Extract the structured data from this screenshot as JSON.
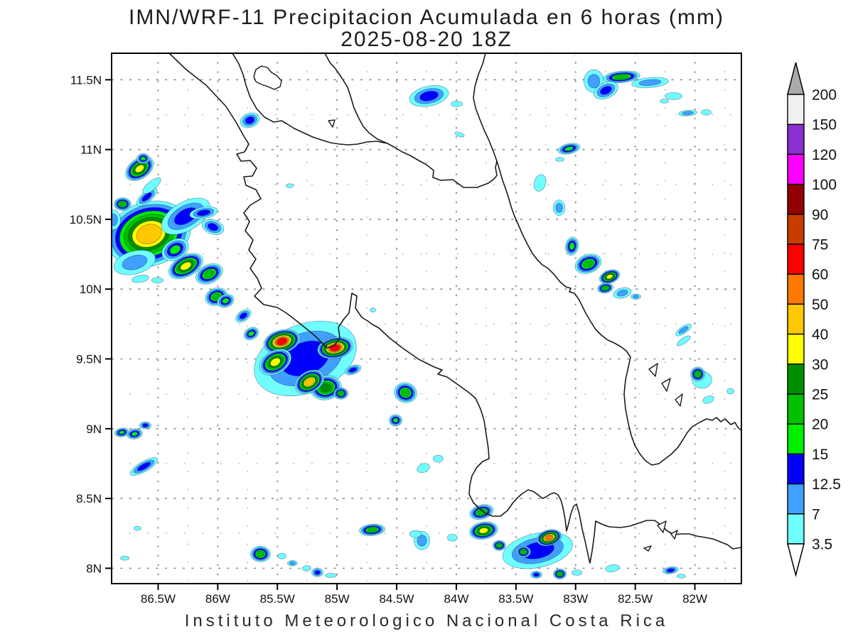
{
  "title": {
    "line1": "IMN/WRF-11 Precipitacion Acumulada en 6 horas (mm)",
    "line2": "2025-08-20 18Z"
  },
  "footer": "Instituto Meteorologico Nacional Costa Rica",
  "chart_data": {
    "type": "heatmap",
    "title": "IMN/WRF-11 Precipitacion Acumulada en 6 horas (mm)",
    "subtitle": "2025-08-20 18Z",
    "units": "mm",
    "legend_position": "right",
    "grid": "dotted",
    "proj": {
      "lon_min": -86.89,
      "lon_max": -81.61,
      "lat_min": 7.89,
      "lat_max": 11.69
    },
    "x_ticks": [
      {
        "lon": -86.5,
        "label": "86.5W"
      },
      {
        "lon": -86.0,
        "label": "86W"
      },
      {
        "lon": -85.5,
        "label": "85.5W"
      },
      {
        "lon": -85.0,
        "label": "85W"
      },
      {
        "lon": -84.5,
        "label": "84.5W"
      },
      {
        "lon": -84.0,
        "label": "84W"
      },
      {
        "lon": -83.5,
        "label": "83.5W"
      },
      {
        "lon": -83.0,
        "label": "83W"
      },
      {
        "lon": -82.5,
        "label": "82.5W"
      },
      {
        "lon": -82.0,
        "label": "82W"
      }
    ],
    "y_ticks": [
      {
        "lat": 11.5,
        "label": "11.5N"
      },
      {
        "lat": 11.0,
        "label": "11N"
      },
      {
        "lat": 10.5,
        "label": "10.5N"
      },
      {
        "lat": 10.0,
        "label": "10N"
      },
      {
        "lat": 9.5,
        "label": "9.5N"
      },
      {
        "lat": 9.0,
        "label": "9N"
      },
      {
        "lat": 8.5,
        "label": "8.5N"
      },
      {
        "lat": 8.0,
        "label": "8N"
      }
    ],
    "levels": [
      3.5,
      7,
      12.5,
      15,
      20,
      25,
      30,
      40,
      50,
      60,
      75,
      90,
      100,
      120,
      150,
      200
    ],
    "level_colors": [
      "#70FFFF",
      "#41A0FF",
      "#0000FF",
      "#00EE00",
      "#00C000",
      "#008F00",
      "#FFFF00",
      "#FFC800",
      "#FF7800",
      "#FF0000",
      "#C83C00",
      "#940000",
      "#FF00FF",
      "#8A30D0",
      "#F0F0F0",
      "#AAAAAA"
    ],
    "colorbar_arrow_top_color": "#AAAAAA",
    "colorbar_arrow_bottom_color": "#FFFFFF",
    "cell_format": [
      "lon",
      "lat",
      "rx_deg",
      "ry_deg",
      "rotation_deg",
      "max_level_count"
    ],
    "cells": [
      [
        -86.655,
        10.863,
        0.131,
        0.071,
        -35,
        7
      ],
      [
        -86.625,
        10.935,
        0.054,
        0.036,
        0,
        4
      ],
      [
        -86.554,
        10.741,
        0.095,
        0.031,
        -40,
        1
      ],
      [
        -86.595,
        10.66,
        0.107,
        0.036,
        -40,
        3
      ],
      [
        -86.798,
        10.609,
        0.072,
        0.046,
        0,
        5
      ],
      [
        -86.875,
        10.497,
        0.06,
        0.071,
        0,
        2
      ],
      [
        -86.577,
        10.395,
        0.358,
        0.229,
        -18,
        8
      ],
      [
        -86.268,
        10.522,
        0.226,
        0.102,
        -30,
        3
      ],
      [
        -86.119,
        10.547,
        0.119,
        0.041,
        -10,
        3
      ],
      [
        -86.041,
        10.445,
        0.095,
        0.051,
        20,
        3
      ],
      [
        -86.697,
        10.191,
        0.179,
        0.082,
        -15,
        2
      ],
      [
        -86.357,
        10.283,
        0.119,
        0.071,
        -30,
        4
      ],
      [
        -86.268,
        10.165,
        0.155,
        0.076,
        -28,
        7
      ],
      [
        -86.071,
        10.109,
        0.119,
        0.066,
        -25,
        5
      ],
      [
        -86.012,
        9.946,
        0.095,
        0.061,
        -20,
        5
      ],
      [
        -85.934,
        9.916,
        0.072,
        0.046,
        -20,
        4
      ],
      [
        -86.649,
        10.074,
        0.072,
        0.025,
        -10,
        1
      ],
      [
        -86.506,
        10.063,
        0.048,
        0.02,
        0,
        1
      ],
      [
        -86.804,
        8.973,
        0.06,
        0.031,
        -10,
        4
      ],
      [
        -86.697,
        8.963,
        0.066,
        0.036,
        -10,
        4
      ],
      [
        -86.607,
        9.024,
        0.048,
        0.025,
        0,
        3
      ],
      [
        -86.619,
        8.729,
        0.131,
        0.036,
        -30,
        3
      ],
      [
        -86.78,
        8.072,
        0.036,
        0.015,
        0,
        1
      ],
      [
        -86.673,
        8.286,
        0.03,
        0.015,
        0,
        1
      ],
      [
        -85.785,
        9.809,
        0.072,
        0.036,
        -35,
        3
      ],
      [
        -85.719,
        9.681,
        0.066,
        0.041,
        -30,
        4
      ],
      [
        -85.266,
        9.503,
        0.447,
        0.245,
        -22,
        3
      ],
      [
        -85.463,
        9.625,
        0.155,
        0.082,
        -15,
        10
      ],
      [
        -85.016,
        9.579,
        0.149,
        0.076,
        -10,
        10
      ],
      [
        -85.517,
        9.477,
        0.143,
        0.082,
        -30,
        7
      ],
      [
        -85.231,
        9.335,
        0.131,
        0.076,
        -30,
        8
      ],
      [
        -85.094,
        9.294,
        0.131,
        0.087,
        -10,
        6
      ],
      [
        -84.968,
        9.253,
        0.06,
        0.041,
        0,
        5
      ],
      [
        -84.867,
        9.421,
        0.072,
        0.031,
        -20,
        3
      ],
      [
        -84.426,
        9.258,
        0.095,
        0.071,
        15,
        5
      ],
      [
        -84.509,
        9.06,
        0.054,
        0.041,
        0,
        4
      ],
      [
        -84.277,
        8.718,
        0.054,
        0.031,
        -20,
        1
      ],
      [
        -84.229,
        11.383,
        0.167,
        0.071,
        -12,
        3
      ],
      [
        -83.997,
        11.327,
        0.048,
        0.02,
        0,
        1
      ],
      [
        -83.973,
        11.108,
        0.042,
        0.015,
        20,
        1
      ],
      [
        -82.614,
        11.52,
        0.155,
        0.041,
        -5,
        5
      ],
      [
        -82.745,
        11.424,
        0.107,
        0.056,
        -25,
        3
      ],
      [
        -82.847,
        11.49,
        0.083,
        0.082,
        0,
        2
      ],
      [
        -82.376,
        11.48,
        0.155,
        0.036,
        -5,
        2
      ],
      [
        -82.179,
        11.383,
        0.072,
        0.025,
        0,
        1
      ],
      [
        -82.06,
        11.261,
        0.077,
        0.02,
        -5,
        2
      ],
      [
        -81.905,
        11.266,
        0.042,
        0.02,
        0,
        1
      ],
      [
        -82.256,
        11.347,
        0.036,
        0.015,
        0,
        1
      ],
      [
        -83.055,
        11.006,
        0.095,
        0.036,
        -12,
        4
      ],
      [
        -83.132,
        10.929,
        0.036,
        0.015,
        0,
        1
      ],
      [
        -83.299,
        10.761,
        0.048,
        0.061,
        15,
        1
      ],
      [
        -83.138,
        10.583,
        0.048,
        0.056,
        0,
        2
      ],
      [
        -83.031,
        10.308,
        0.054,
        0.066,
        10,
        4
      ],
      [
        -82.894,
        10.181,
        0.113,
        0.066,
        -20,
        5
      ],
      [
        -82.715,
        10.089,
        0.089,
        0.046,
        -20,
        7
      ],
      [
        -82.751,
        10.007,
        0.066,
        0.036,
        -10,
        5
      ],
      [
        -82.608,
        9.972,
        0.077,
        0.036,
        -15,
        2
      ],
      [
        -82.495,
        9.946,
        0.042,
        0.02,
        0,
        2
      ],
      [
        -82.095,
        9.707,
        0.077,
        0.025,
        -35,
        2
      ],
      [
        -82.095,
        9.63,
        0.066,
        0.02,
        -35,
        1
      ],
      [
        -81.976,
        9.391,
        0.06,
        0.051,
        0,
        5
      ],
      [
        -81.94,
        9.35,
        0.083,
        0.061,
        0,
        1
      ],
      [
        -81.887,
        9.208,
        0.048,
        0.025,
        -20,
        1
      ],
      [
        -81.702,
        9.269,
        0.03,
        0.02,
        0,
        1
      ],
      [
        -85.642,
        8.102,
        0.083,
        0.056,
        0,
        5
      ],
      [
        -85.463,
        8.087,
        0.036,
        0.02,
        0,
        1
      ],
      [
        -85.374,
        8.036,
        0.042,
        0.02,
        0,
        2
      ],
      [
        -85.254,
        8.0,
        0.036,
        0.02,
        0,
        1
      ],
      [
        -85.165,
        7.97,
        0.048,
        0.031,
        0,
        3
      ],
      [
        -85.052,
        7.949,
        0.048,
        0.015,
        0,
        1
      ],
      [
        -84.706,
        8.275,
        0.107,
        0.041,
        -5,
        5
      ],
      [
        -84.289,
        8.199,
        0.066,
        0.066,
        0,
        2
      ],
      [
        -84.033,
        8.219,
        0.042,
        0.025,
        0,
        1
      ],
      [
        -83.789,
        8.403,
        0.101,
        0.051,
        -15,
        5
      ],
      [
        -83.771,
        8.27,
        0.119,
        0.061,
        -10,
        7
      ],
      [
        -83.318,
        8.128,
        0.298,
        0.122,
        -12,
        3
      ],
      [
        -83.64,
        8.163,
        0.054,
        0.036,
        0,
        5
      ],
      [
        -83.437,
        8.118,
        0.06,
        0.041,
        0,
        5
      ],
      [
        -83.222,
        8.219,
        0.107,
        0.056,
        -15,
        9
      ],
      [
        -83.132,
        7.959,
        0.054,
        0.036,
        0,
        5
      ],
      [
        -83.329,
        7.954,
        0.048,
        0.025,
        0,
        3
      ],
      [
        -82.989,
        7.969,
        0.042,
        0.02,
        0,
        1
      ],
      [
        -82.691,
        8.0,
        0.06,
        0.025,
        -10,
        1
      ],
      [
        -82.203,
        7.985,
        0.066,
        0.025,
        -10,
        3
      ],
      [
        -82.114,
        7.944,
        0.036,
        0.015,
        0,
        1
      ],
      [
        -84.343,
        8.245,
        0.048,
        0.025,
        0,
        1
      ],
      [
        -84.152,
        8.785,
        0.042,
        0.025,
        0,
        1
      ],
      [
        -85.398,
        10.741,
        0.03,
        0.015,
        0,
        1
      ],
      [
        -85.731,
        11.21,
        0.083,
        0.051,
        -20,
        3
      ],
      [
        -84.7,
        9.85,
        0.024,
        0.015,
        0,
        1
      ]
    ]
  }
}
